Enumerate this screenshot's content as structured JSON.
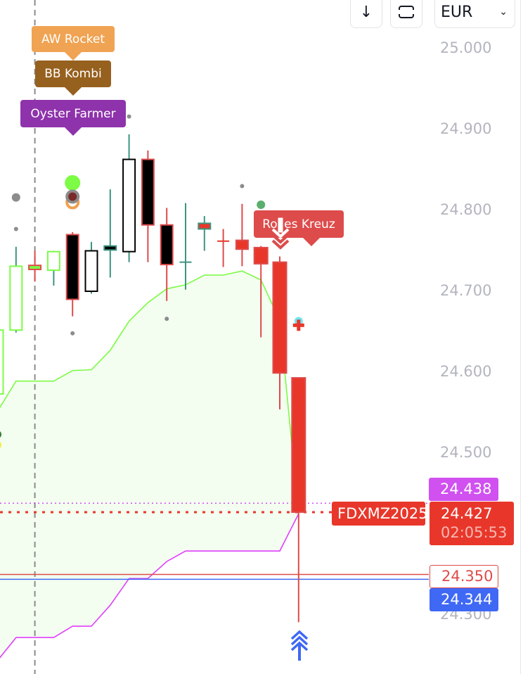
{
  "toolbar": {
    "buttons": [
      {
        "icon": "arrow-down-icon",
        "glyph": "↓"
      },
      {
        "icon": "fullscreen-frame-icon"
      }
    ],
    "currency_select": {
      "value": "EUR",
      "icon": "chevron-down-icon"
    }
  },
  "chart_data": {
    "type": "candlestick",
    "symbol": "FDXMZ2025",
    "ylim": [
      24.22,
      25.06
    ],
    "y_ticks": [
      "25.000",
      "24.900",
      "24.800",
      "24.700",
      "24.600",
      "24.500",
      "24.300"
    ],
    "y_tick_values": [
      25.0,
      24.9,
      24.8,
      24.7,
      24.6,
      24.5,
      24.3
    ],
    "grid": false,
    "candles": [
      {
        "o": 24.573,
        "h": 24.66,
        "l": 24.55,
        "c": 24.652,
        "fill": "#ffffff",
        "outline": "#7cfc44",
        "wick": "#7cfc44"
      },
      {
        "o": 24.652,
        "h": 24.755,
        "l": 24.649,
        "c": 24.731,
        "fill": "#ffffff",
        "outline": "#7cfc44",
        "wick": "#3d9480"
      },
      {
        "o": 24.732,
        "h": 24.75,
        "l": 24.712,
        "c": 24.727,
        "fill": "#7cfc44",
        "outline": "#dd4b4b",
        "wick": "#dd4b4b"
      },
      {
        "o": 24.726,
        "h": 24.75,
        "l": 24.707,
        "c": 24.749,
        "fill": "#ffffff",
        "outline": "#7cfc44",
        "wick": "#3d9480"
      },
      {
        "o": 24.77,
        "h": 24.773,
        "l": 24.669,
        "c": 24.69,
        "fill": "#000000",
        "outline": "#dd4b4b",
        "wick": "#dd4b4b"
      },
      {
        "o": 24.7,
        "h": 24.761,
        "l": 24.697,
        "c": 24.75,
        "fill": "#ffffff",
        "outline": "#000000",
        "wick": "#3d9480"
      },
      {
        "o": 24.751,
        "h": 24.826,
        "l": 24.717,
        "c": 24.756,
        "fill": "#000000",
        "outline": "#3d9480",
        "wick": "#3d9480"
      },
      {
        "o": 24.749,
        "h": 24.894,
        "l": 24.736,
        "c": 24.863,
        "fill": "#ffffff",
        "outline": "#000000",
        "wick": "#3d9480"
      },
      {
        "o": 24.863,
        "h": 24.874,
        "l": 24.736,
        "c": 24.782,
        "fill": "#000000",
        "outline": "#dd4b4b",
        "wick": "#dd4b4b"
      },
      {
        "o": 24.782,
        "h": 24.803,
        "l": 24.688,
        "c": 24.733,
        "fill": "#000000",
        "outline": "#dd4b4b",
        "wick": "#dd4b4b"
      },
      {
        "o": 24.736,
        "h": 24.809,
        "l": 24.702,
        "c": 24.736,
        "fill": "#3d9480",
        "outline": "#3d9480",
        "wick": "#3d9480"
      },
      {
        "o": 24.784,
        "h": 24.793,
        "l": 24.75,
        "c": 24.777,
        "fill": "#e8372a",
        "outline": "#3d9480",
        "wick": "#3d9480"
      },
      {
        "o": 24.762,
        "h": 24.777,
        "l": 24.73,
        "c": 24.762,
        "fill": "#e8372a",
        "outline": "#e8372a",
        "wick": "#dd4b4b"
      },
      {
        "o": 24.763,
        "h": 24.808,
        "l": 24.731,
        "c": 24.752,
        "fill": "#e8372a",
        "outline": "#dd4b4b",
        "wick": "#dd4b4b"
      },
      {
        "o": 24.754,
        "h": 24.756,
        "l": 24.643,
        "c": 24.734,
        "fill": "#e8372a",
        "outline": "#dd4b4b",
        "wick": "#dd4b4b"
      },
      {
        "o": 24.736,
        "h": 24.743,
        "l": 24.554,
        "c": 24.599,
        "fill": "#e8372a",
        "outline": "#dd4b4b",
        "wick": "#dd4b4b"
      },
      {
        "o": 24.593,
        "h": 24.593,
        "l": 24.291,
        "c": 24.427,
        "fill": "#e8372a",
        "outline": "#dd4b4b",
        "wick": "#dd4b4b"
      }
    ],
    "series": [
      {
        "color": "#7cfc44",
        "fill": "#f3fdf0",
        "values": [
          24.551,
          24.589,
          24.589,
          24.589,
          24.602,
          24.603,
          24.627,
          24.663,
          24.686,
          24.703,
          24.708,
          24.72,
          24.72,
          24.725,
          24.714,
          24.664,
          24.425
        ]
      },
      {
        "color": "#e040fb",
        "values": [
          24.243,
          24.272,
          24.272,
          24.272,
          24.286,
          24.286,
          24.312,
          24.345,
          24.345,
          24.366,
          24.379,
          24.379,
          24.379,
          24.379,
          24.379,
          24.379,
          24.425
        ]
      }
    ],
    "hlines": [
      {
        "price": 24.438,
        "color": "#d050f0",
        "style": "dotted"
      },
      {
        "price": 24.427,
        "color": "#e8372a",
        "style": "dotted-bold"
      },
      {
        "price": 24.35,
        "color": "#dd4b4b",
        "style": "solid"
      },
      {
        "price": 24.344,
        "color": "#3f68f5",
        "style": "solid"
      }
    ],
    "vline_index": 2,
    "markers": [
      {
        "i": 1,
        "p": 24.816,
        "type": "dot",
        "color": "#8c8c8c",
        "size": "large"
      },
      {
        "i": 1,
        "p": 24.777,
        "type": "dot",
        "color": "#8c8c8c",
        "size": "small"
      },
      {
        "i": 4,
        "p": 24.648,
        "type": "dot",
        "color": "#8c8c8c",
        "size": "small"
      },
      {
        "i": 7,
        "p": 24.916,
        "type": "dot",
        "color": "#8c8c8c",
        "size": "small"
      },
      {
        "i": 9,
        "p": 24.666,
        "type": "dot",
        "color": "#8c8c8c",
        "size": "small"
      },
      {
        "i": 13,
        "p": 24.83,
        "type": "dot",
        "color": "#8c8c8c",
        "size": "small"
      },
      {
        "i": 4,
        "p": 24.834,
        "type": "dot",
        "color": "#7cfc44",
        "size": "xlarge"
      },
      {
        "i": 4,
        "p": 24.81,
        "type": "ring",
        "color": "#f0a050",
        "fill": "#ffffff"
      },
      {
        "i": 4,
        "p": 24.817,
        "type": "ring",
        "color": "#8c8c8c",
        "fill": "#7a2a2a"
      },
      {
        "i": 14,
        "p": 24.807,
        "type": "dot",
        "color": "#5aaf6e",
        "size": "large"
      },
      {
        "i": 16,
        "p": 24.663,
        "type": "dot",
        "color": "#6ee6f0",
        "size": "large"
      },
      {
        "i": 16,
        "p": 24.658,
        "type": "plus",
        "color": "#e8372a"
      },
      {
        "i": 0,
        "p": 24.51,
        "type": "dot",
        "color": "#f0f040",
        "size": "large"
      },
      {
        "i": 0,
        "p": 24.523,
        "type": "dot",
        "color": "#2e7d32",
        "size": "large"
      },
      {
        "i": 15,
        "p": 24.773,
        "type": "chevrons-down",
        "color": "#dd4b4b"
      },
      {
        "i": 16,
        "p": 24.264,
        "type": "chevrons-up",
        "color": "#3f68f5"
      }
    ],
    "signal_labels": [
      {
        "text": "AW Rocket",
        "color": "#f0a352",
        "i": 4
      },
      {
        "text": "BB Kombi",
        "color": "#96601e",
        "i": 4
      },
      {
        "text": "Oyster Farmer",
        "color": "#8e33ab",
        "i": 4
      },
      {
        "text": "Rolles Kreuz",
        "color": "#dd4b4b",
        "i": 16
      }
    ],
    "price_labels": {
      "upper": {
        "value": "24.438",
        "color": "#d050f0"
      },
      "symbol": {
        "text": "FDXMZ2025",
        "color": "#e8372a"
      },
      "last": {
        "value": "24.427",
        "countdown": "02:05:53",
        "color": "#e8372a"
      },
      "level_red": {
        "value": "24.350",
        "color": "#dd4b4b"
      },
      "level_blue": {
        "value": "24.344",
        "color": "#3f68f5"
      }
    }
  }
}
